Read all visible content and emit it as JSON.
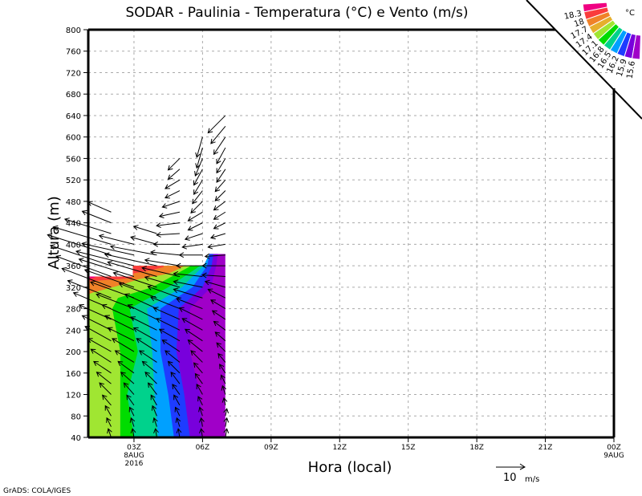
{
  "chart_data": {
    "type": "filled-contour-with-vectors",
    "title": "SODAR - Paulinia - Temperatura (°C) e Vento (m/s)",
    "xlabel": "Hora (local)",
    "ylabel": "Altura (m)",
    "xlim_hours": [
      1,
      24
    ],
    "ylim": [
      40,
      800
    ],
    "grid": true,
    "yticks": [
      "40",
      "80",
      "120",
      "160",
      "200",
      "240",
      "280",
      "320",
      "360",
      "400",
      "440",
      "480",
      "520",
      "560",
      "600",
      "640",
      "680",
      "720",
      "760",
      "800"
    ],
    "xticks": [
      {
        "hour": 3,
        "label": "03Z",
        "sub1": "8AUG",
        "sub2": "2016"
      },
      {
        "hour": 6,
        "label": "06Z"
      },
      {
        "hour": 9,
        "label": "09Z"
      },
      {
        "hour": 12,
        "label": "12Z"
      },
      {
        "hour": 15,
        "label": "15Z"
      },
      {
        "hour": 18,
        "label": "18Z"
      },
      {
        "hour": 21,
        "label": "21Z"
      },
      {
        "hour": 24,
        "label": "00Z",
        "sub1": "9AUG"
      }
    ],
    "legend": {
      "unit": "°C",
      "placement": "top-right",
      "colors": [
        "#f00082",
        "#fa3c3c",
        "#f08228",
        "#e6af2d",
        "#a0e632",
        "#00dc00",
        "#00d28c",
        "#00a0ff",
        "#1e3cff",
        "#7800dc",
        "#a000c8"
      ],
      "labels": [
        "18.3",
        "18",
        "17.7",
        "17.4",
        "17.1",
        "16.8",
        "16.5",
        "16.2",
        "15.9",
        "15.6"
      ]
    },
    "data_region": [
      [
        1,
        40
      ],
      [
        7,
        40
      ],
      [
        7,
        382
      ],
      [
        6.3,
        382
      ],
      [
        6.05,
        360
      ],
      [
        2.95,
        360
      ],
      [
        2.95,
        340
      ],
      [
        1,
        340
      ]
    ],
    "bands": [
      {
        "color": "#7800dc",
        "boundary": [
          [
            40,
            5.98
          ],
          [
            120,
            5.9
          ],
          [
            200,
            5.45
          ],
          [
            280,
            5.45
          ],
          [
            320,
            6.37
          ],
          [
            360,
            6.6
          ],
          [
            390,
            6.7
          ]
        ]
      },
      {
        "color": "#1e3cff",
        "boundary": [
          [
            40,
            5.45
          ],
          [
            120,
            5.2
          ],
          [
            200,
            4.86
          ],
          [
            280,
            4.96
          ],
          [
            320,
            6.0
          ],
          [
            360,
            6.4
          ],
          [
            390,
            6.5
          ]
        ]
      },
      {
        "color": "#00a0ff",
        "boundary": [
          [
            40,
            4.75
          ],
          [
            120,
            4.5
          ],
          [
            200,
            4.16
          ],
          [
            280,
            4.16
          ],
          [
            320,
            5.56
          ],
          [
            360,
            6.2
          ],
          [
            390,
            6.35
          ]
        ]
      },
      {
        "color": "#00d28c",
        "boundary": [
          [
            40,
            4.05
          ],
          [
            120,
            3.9
          ],
          [
            200,
            3.8
          ],
          [
            280,
            3.57
          ],
          [
            320,
            5.1
          ],
          [
            360,
            6.05
          ],
          [
            390,
            6.2
          ]
        ]
      },
      {
        "color": "#00dc00",
        "boundary": [
          [
            40,
            3.0
          ],
          [
            120,
            2.7
          ],
          [
            200,
            3.17
          ],
          [
            280,
            2.81
          ],
          [
            320,
            4.5
          ],
          [
            360,
            5.9
          ],
          [
            390,
            6.1
          ]
        ]
      },
      {
        "color": "#a0e632",
        "boundary": [
          [
            40,
            2.4
          ],
          [
            120,
            2.4
          ],
          [
            200,
            2.4
          ],
          [
            280,
            2.05
          ],
          [
            300,
            2.3
          ],
          [
            320,
            3.8
          ],
          [
            360,
            5.5
          ],
          [
            390,
            6.0
          ]
        ]
      },
      {
        "color": "#e6af2d",
        "boundary": [
          [
            40,
            0
          ],
          [
            390,
            0
          ]
        ]
      },
      {
        "color": "#f08228",
        "boundary": [
          [
            290,
            0
          ],
          [
            310,
            1.2
          ],
          [
            325,
            2.5
          ],
          [
            335,
            3.2
          ],
          [
            345,
            4.5
          ],
          [
            355,
            5.0
          ],
          [
            362,
            5.3
          ],
          [
            390,
            5.3
          ]
        ]
      },
      {
        "color": "#fa3c3c",
        "boundary": [
          [
            315,
            0
          ],
          [
            330,
            0.6
          ],
          [
            334,
            2.0
          ],
          [
            337,
            2.9
          ],
          [
            346,
            3.0
          ],
          [
            352,
            3.8
          ],
          [
            358,
            4.3
          ],
          [
            390,
            4.3
          ]
        ]
      },
      {
        "color": "#f00082",
        "boundary": [
          [
            334,
            0
          ],
          [
            337,
            1.2
          ],
          [
            341,
            1.4
          ],
          [
            390,
            1.4
          ]
        ]
      }
    ],
    "wind_columns": [
      {
        "hour": 2,
        "start_alt": 40,
        "uv": [
          [
            -1,
            3
          ],
          [
            -1.5,
            3
          ],
          [
            -2,
            3.5
          ],
          [
            -3,
            3.5
          ],
          [
            -4,
            4
          ],
          [
            -5,
            4
          ],
          [
            -6,
            4
          ],
          [
            -7,
            4.5
          ],
          [
            -8,
            4.5
          ],
          [
            -9,
            5
          ],
          [
            -10,
            5
          ],
          [
            -11,
            5
          ],
          [
            -13,
            5.5
          ],
          [
            -15,
            6
          ],
          [
            -17,
            6.5
          ],
          [
            -19,
            7
          ],
          [
            -21,
            7
          ],
          [
            -22,
            7
          ],
          [
            -20,
            6
          ],
          [
            -16,
            5
          ],
          [
            -10,
            4
          ],
          [
            -8,
            3.5
          ]
        ]
      },
      {
        "hour": 3,
        "start_alt": 40,
        "uv": [
          [
            -0.5,
            3
          ],
          [
            -1,
            3
          ],
          [
            -1.5,
            3
          ],
          [
            -2.5,
            3.5
          ],
          [
            -3.5,
            4
          ],
          [
            -4.5,
            4
          ],
          [
            -5.5,
            4
          ],
          [
            -6.5,
            4
          ],
          [
            -7.5,
            4.5
          ],
          [
            -9,
            4.5
          ],
          [
            -10,
            5
          ],
          [
            -11,
            5
          ],
          [
            -13,
            5
          ],
          [
            -15,
            5.5
          ],
          [
            -17,
            6
          ],
          [
            -19,
            6
          ],
          [
            -20,
            5
          ],
          [
            -18,
            4
          ],
          [
            -12,
            3
          ]
        ]
      },
      {
        "hour": 4,
        "start_alt": 40,
        "uv": [
          [
            -0.5,
            3
          ],
          [
            -1,
            3
          ],
          [
            -1.5,
            3.5
          ],
          [
            -2,
            3.5
          ],
          [
            -3,
            4
          ],
          [
            -4,
            4
          ],
          [
            -5,
            4
          ],
          [
            -6,
            4
          ],
          [
            -7,
            4.5
          ],
          [
            -8,
            4.5
          ],
          [
            -9,
            4.5
          ],
          [
            -10,
            5
          ],
          [
            -11,
            5
          ],
          [
            -13,
            5
          ],
          [
            -15,
            5
          ],
          [
            -17,
            5
          ],
          [
            -18,
            4
          ],
          [
            -16,
            3
          ],
          [
            -9,
            2.5
          ],
          [
            -8,
            2.5
          ]
        ]
      },
      {
        "hour": 5,
        "start_alt": 40,
        "uv": [
          [
            -0.5,
            3
          ],
          [
            -1,
            3
          ],
          [
            -1.5,
            3
          ],
          [
            -2,
            3.5
          ],
          [
            -2.5,
            3.5
          ],
          [
            -3,
            4
          ],
          [
            -4,
            4
          ],
          [
            -5,
            4
          ],
          [
            -6,
            4
          ],
          [
            -7,
            4
          ],
          [
            -8,
            4
          ],
          [
            -9,
            4
          ],
          [
            -10,
            4
          ],
          [
            -11,
            4
          ],
          [
            -12,
            3.5
          ],
          [
            -13,
            3
          ],
          [
            -12,
            2
          ],
          [
            -10,
            1
          ],
          [
            -9,
            0
          ],
          [
            -8,
            -0.5
          ],
          [
            -8,
            -1
          ],
          [
            -7,
            -1.5
          ],
          [
            -6,
            -2
          ],
          [
            -5,
            -2.5
          ],
          [
            -5,
            -3
          ],
          [
            -4,
            -3.5
          ],
          [
            -4,
            -4
          ]
        ]
      },
      {
        "hour": 6,
        "start_alt": 40,
        "uv": [
          [
            -0.5,
            3
          ],
          [
            -0.5,
            3
          ],
          [
            -1,
            3
          ],
          [
            -1.5,
            3
          ],
          [
            -2,
            3.5
          ],
          [
            -2.5,
            3.5
          ],
          [
            -3,
            3.5
          ],
          [
            -4,
            4
          ],
          [
            -5,
            4
          ],
          [
            -6,
            4
          ],
          [
            -7,
            4
          ],
          [
            -8,
            4
          ],
          [
            -9,
            3.5
          ],
          [
            -10,
            3
          ],
          [
            -10,
            2
          ],
          [
            -10,
            1
          ],
          [
            -9,
            0
          ],
          [
            -8,
            0
          ],
          [
            -7,
            -1
          ],
          [
            -6,
            -2
          ],
          [
            -5,
            -2.5
          ],
          [
            -5,
            -3
          ],
          [
            -4,
            -4
          ],
          [
            -3.5,
            -4.5
          ],
          [
            -3,
            -5
          ],
          [
            -3,
            -5.5
          ],
          [
            -2.5,
            -6
          ],
          [
            -2,
            -7
          ],
          [
            -2,
            -7
          ]
        ]
      },
      {
        "hour": 7,
        "start_alt": 40,
        "uv": [
          [
            0.5,
            3
          ],
          [
            0.5,
            3
          ],
          [
            0.5,
            2.5
          ],
          [
            -0.5,
            2.5
          ],
          [
            -1,
            3
          ],
          [
            -1.5,
            3
          ],
          [
            -2,
            3
          ],
          [
            -2.5,
            3
          ],
          [
            -3,
            3
          ],
          [
            -3.5,
            3
          ],
          [
            -4,
            3
          ],
          [
            -4.5,
            3
          ],
          [
            -5,
            3
          ],
          [
            -6,
            3
          ],
          [
            -7,
            2
          ],
          [
            -8,
            0.5
          ],
          [
            -8,
            0
          ],
          [
            -7,
            -0.5
          ],
          [
            -6,
            -1
          ],
          [
            -5,
            -1.5
          ],
          [
            -4,
            -2
          ],
          [
            -4,
            -2.5
          ],
          [
            -4,
            -3
          ],
          [
            -3.5,
            -3.5
          ],
          [
            -3.5,
            -4
          ],
          [
            -3,
            -4.5
          ],
          [
            -3,
            -5
          ],
          [
            -3,
            -5.5
          ],
          [
            -4,
            -6
          ],
          [
            -5,
            -6
          ],
          [
            -6,
            -6
          ]
        ]
      }
    ],
    "vector_reference": {
      "value": "10",
      "unit": "m/s"
    }
  },
  "credit": "GrADS: COLA/IGES"
}
